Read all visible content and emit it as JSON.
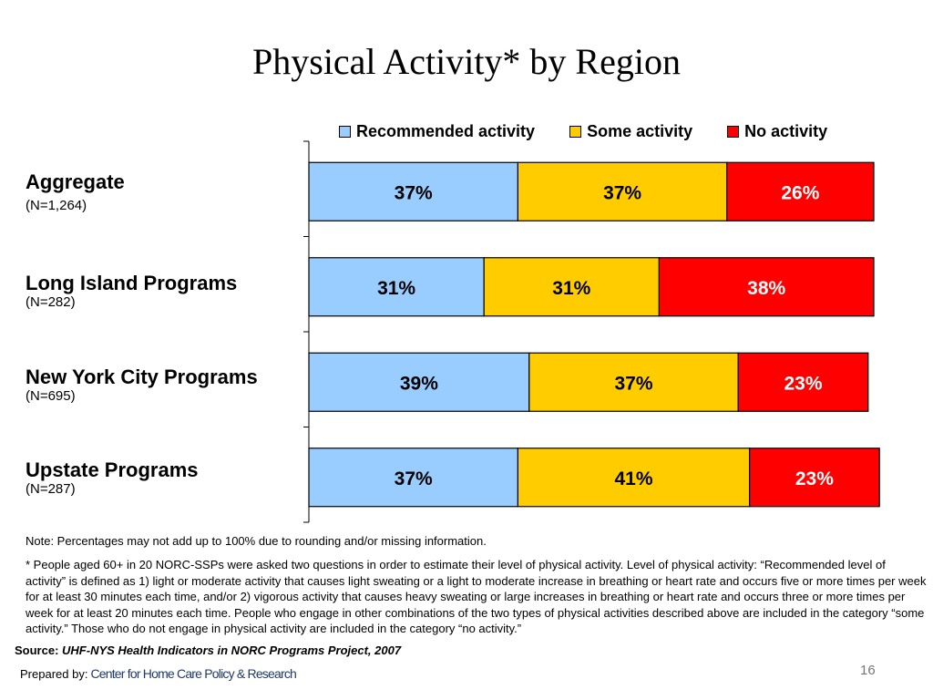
{
  "title": "Physical Activity* by Region",
  "legend": [
    {
      "label": "Recommended activity",
      "color": "#99ccff"
    },
    {
      "label": "Some activity",
      "color": "#ffcc00"
    },
    {
      "label": "No activity",
      "color": "#ff0000"
    }
  ],
  "rows": [
    {
      "label": "Aggregate",
      "n": "(N=1,264)"
    },
    {
      "label": "Long Island Programs",
      "n": "(N=282)"
    },
    {
      "label": "New York City Programs",
      "n": "(N=695)"
    },
    {
      "label": "Upstate Programs",
      "n": "(N=287)"
    }
  ],
  "chart_data": {
    "type": "bar",
    "orientation": "horizontal",
    "stacked": true,
    "categories": [
      "Aggregate",
      "Long Island Programs",
      "New York City Programs",
      "Upstate Programs"
    ],
    "series": [
      {
        "name": "Recommended activity",
        "color": "#99ccff",
        "label_color": "#000000",
        "values": [
          37,
          31,
          39,
          37
        ]
      },
      {
        "name": "Some activity",
        "color": "#ffcc00",
        "label_color": "#000000",
        "values": [
          37,
          31,
          37,
          41
        ]
      },
      {
        "name": "No activity",
        "color": "#ff0000",
        "label_color": "#ffffff",
        "values": [
          26,
          38,
          23,
          23
        ]
      }
    ],
    "value_suffix": "%",
    "xlim": [
      0,
      100
    ],
    "grid": false,
    "legend_position": "top"
  },
  "note": "Note: Percentages may not add up to 100% due to rounding and/or missing information.",
  "footnote": "* People aged 60+ in 20 NORC-SSPs were asked two questions in order to estimate their level of  physical activity. Level of physical activity: “Recommended level of activity” is defined as 1) light or moderate activity that causes light sweating or a light to moderate increase in breathing or heart rate and occurs five or more times per week for at least 30 minutes each time, and/or 2) vigorous activity that causes heavy sweating or large increases in breathing or heart rate and occurs three or more times per week for at least 20 minutes each time. People who engage in other combinations of the two types of physical activities described above are included in the category “some activity.” Those who do not engage in physical activity are included in the category “no activity.”",
  "source": {
    "label": "Source:",
    "text": "UHF-NYS Health Indicators in NORC Programs Project, 2007"
  },
  "prepared_by": {
    "label": "Prepared by:",
    "logo_text": "Center for Home Care Policy & Research"
  },
  "page_number": "16"
}
